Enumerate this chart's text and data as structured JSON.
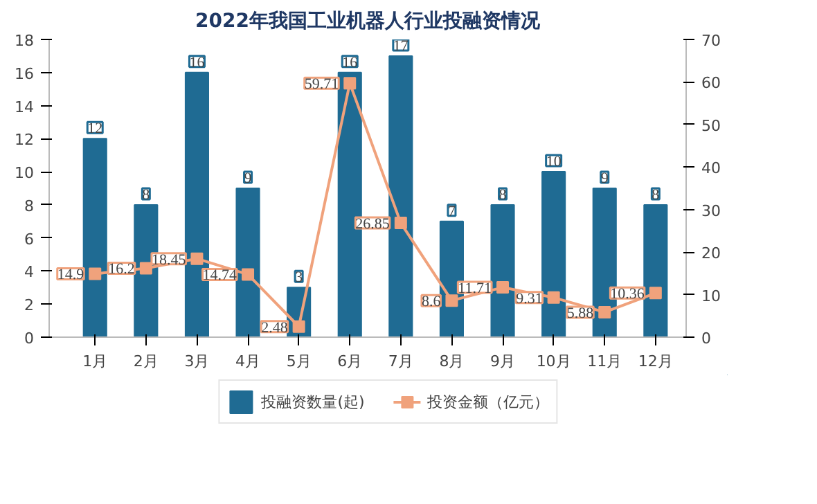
{
  "chart_data": {
    "type": "bar",
    "title": "2022年我国工业机器人行业投融资情况",
    "categories": [
      "1月",
      "2月",
      "3月",
      "4月",
      "5月",
      "6月",
      "7月",
      "8月",
      "9月",
      "10月",
      "11月",
      "12月"
    ],
    "series": [
      {
        "name": "投融资数量(起)",
        "color": "#1f6b93",
        "values": [
          12,
          8,
          16,
          9,
          3,
          16,
          17,
          7,
          8,
          10,
          9,
          8
        ]
      },
      {
        "name": "投资金额（亿元）",
        "type": "line",
        "axis": "y2",
        "color": "#f0a27c",
        "marker": "square",
        "line_style": "solid",
        "values": [
          14.9,
          16.2,
          18.45,
          14.74,
          2.48,
          59.71,
          26.85,
          8.6,
          11.71,
          9.31,
          5.88,
          10.36
        ]
      }
    ],
    "ylim": [
      0,
      18
    ],
    "yticks": [
      0,
      2,
      4,
      6,
      8,
      10,
      12,
      14,
      16,
      18
    ],
    "y2lim": [
      0,
      70
    ],
    "y2ticks": [
      0,
      10,
      20,
      30,
      40,
      50,
      60,
      70
    ],
    "data_labels": true,
    "grid": false,
    "legend": "bottom"
  }
}
